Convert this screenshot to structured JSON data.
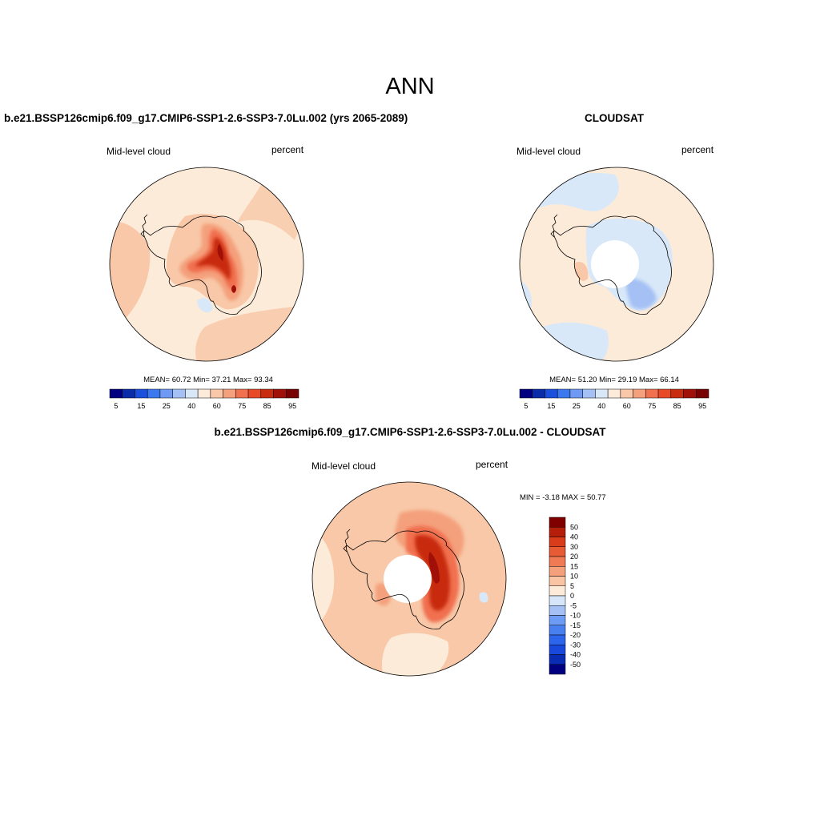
{
  "main_title": "ANN",
  "panels": [
    {
      "title": "b.e21.BSSP126cmip6.f09_g17.CMIP6-SSP1-2.6-SSP3-7.0Lu.002 (yrs 2065-2089)",
      "variable": "Mid-level cloud",
      "units": "percent",
      "stats": "MEAN=  60.72  Min=  37.21  Max=  93.34"
    },
    {
      "title": "CLOUDSAT",
      "variable": "Mid-level cloud",
      "units": "percent",
      "stats": "MEAN=  51.20  Min=  29.19  Max=  66.14"
    },
    {
      "title": "b.e21.BSSP126cmip6.f09_g17.CMIP6-SSP1-2.6-SSP3-7.0Lu.002 - CLOUDSAT",
      "variable": "Mid-level cloud",
      "units": "percent",
      "stats": "MIN =  -3.18 MAX =  50.77"
    }
  ],
  "colorbar_abs": {
    "colors": [
      "#000080",
      "#0a2ca8",
      "#1a50dc",
      "#3c78f0",
      "#6e9af4",
      "#a4c0f4",
      "#d8e8f8",
      "#fdebd9",
      "#f8c8a8",
      "#f4a07c",
      "#f07050",
      "#e84a28",
      "#c82c10",
      "#a01008",
      "#780000"
    ],
    "labels": [
      "5",
      "15",
      "25",
      "40",
      "60",
      "75",
      "85",
      "95"
    ]
  },
  "colorbar_diff": {
    "colors": [
      "#000080",
      "#0a2cb4",
      "#1848dc",
      "#2c64ec",
      "#4880f0",
      "#6e9cf4",
      "#a4c0f4",
      "#d6e6f8",
      "#fdebd9",
      "#f8c4a4",
      "#f4a07c",
      "#f07a54",
      "#e85a34",
      "#d83c1a",
      "#b41e0a",
      "#800000"
    ],
    "labels": [
      "50",
      "40",
      "30",
      "20",
      "15",
      "10",
      "5",
      "0",
      "-5",
      "-10",
      "-15",
      "-20",
      "-30",
      "-40",
      "-50"
    ]
  },
  "colors": {
    "ocean_light": "#fdebd9",
    "blue_light": "#d8e8f8",
    "red_strong": "#c82c10",
    "red_dark": "#a01008",
    "red_mid": "#f07050",
    "red_light": "#f4a07c",
    "coast": "#000000"
  }
}
